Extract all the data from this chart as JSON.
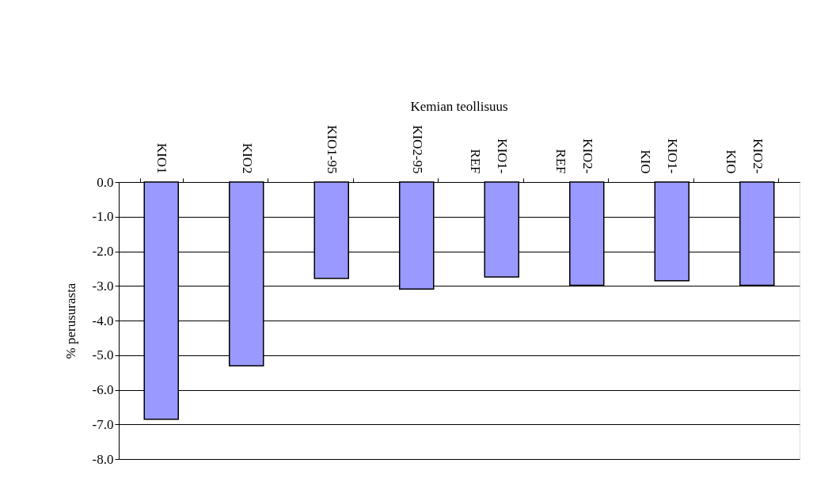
{
  "chart_data": {
    "type": "bar",
    "title": "Kemian teollisuus",
    "ylabel": "% perusurasta",
    "categories": [
      "KIO1",
      "KIO2",
      "KIO1-95",
      "KIO2-95",
      "KIO1-REF",
      "KIO2-REF",
      "KIO1-KIO",
      "KIO2-KIO"
    ],
    "values": [
      -6.85,
      -5.31,
      -2.78,
      -3.09,
      -2.74,
      -2.98,
      -2.85,
      -2.98
    ],
    "color": "#9999ff",
    "ylim": [
      -8,
      0
    ],
    "yticks": [
      {
        "value": 0,
        "label": "0.0"
      },
      {
        "value": -1,
        "label": "-1.0"
      },
      {
        "value": -2,
        "label": "-2.0"
      },
      {
        "value": -3,
        "label": "-3.0"
      },
      {
        "value": -4,
        "label": "-4.0"
      },
      {
        "value": -5,
        "label": "-5.0"
      },
      {
        "value": -6,
        "label": "-6.0"
      },
      {
        "value": -7,
        "label": "-7.0"
      },
      {
        "value": -8,
        "label": "-8.0"
      }
    ],
    "grid": "y"
  }
}
